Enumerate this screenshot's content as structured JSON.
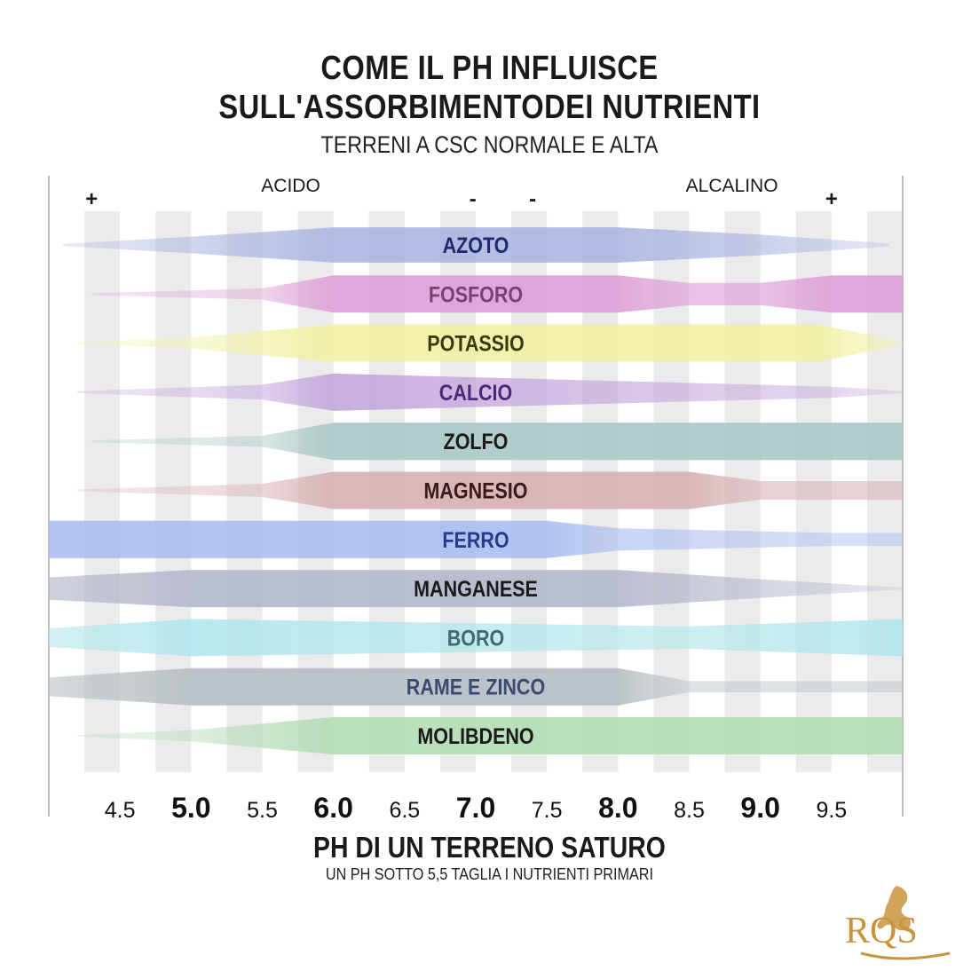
{
  "header": {
    "title_line1": "COME IL PH INFLUISCE",
    "title_line2": "SULL'ASSORBIMENTODEI NUTRIENTI",
    "subtitle": "TERRENI A CSC NORMALE E ALTA"
  },
  "chart_data": {
    "type": "area",
    "x_axis": {
      "range": [
        4.0,
        10.0
      ],
      "ticks": [
        {
          "value": 4.5,
          "label": "4.5",
          "bold": false
        },
        {
          "value": 5.0,
          "label": "5.0",
          "bold": true
        },
        {
          "value": 5.5,
          "label": "5.5",
          "bold": false
        },
        {
          "value": 6.0,
          "label": "6.0",
          "bold": true
        },
        {
          "value": 6.5,
          "label": "6.5",
          "bold": false
        },
        {
          "value": 7.0,
          "label": "7.0",
          "bold": true
        },
        {
          "value": 7.5,
          "label": "7.5",
          "bold": false
        },
        {
          "value": 8.0,
          "label": "8.0",
          "bold": true
        },
        {
          "value": 8.5,
          "label": "8.5",
          "bold": false
        },
        {
          "value": 9.0,
          "label": "9.0",
          "bold": true
        },
        {
          "value": 9.5,
          "label": "9.5",
          "bold": false
        }
      ],
      "xlabel": "PH DI UN TERRENO SATURO",
      "note": "UN PH SOTTO 5,5 TAGLIA I NUTRIENTI PRIMARI"
    },
    "annotations": [
      {
        "text": "ACIDO",
        "x": 5.7
      },
      {
        "text": "ALCALINO",
        "x": 8.8
      },
      {
        "text": "+",
        "x": 4.3
      },
      {
        "text": "-",
        "x": 6.98
      },
      {
        "text": "-",
        "x": 7.4
      },
      {
        "text": "+",
        "x": 9.5
      }
    ],
    "series": [
      {
        "name": "AZOTO",
        "color": "#a9b3e0",
        "label_color": "#1e2a6e",
        "profile": [
          [
            4.1,
            0.05
          ],
          [
            5.0,
            0.45
          ],
          [
            6.0,
            0.95
          ],
          [
            8.0,
            0.95
          ],
          [
            9.0,
            0.55
          ],
          [
            9.9,
            0.08
          ]
        ]
      },
      {
        "name": "FOSFORO",
        "color": "#dd9fd6",
        "label_color": "#7a3e78",
        "profile": [
          [
            4.3,
            0.05
          ],
          [
            5.5,
            0.3
          ],
          [
            6.0,
            1.0
          ],
          [
            8.0,
            1.0
          ],
          [
            8.5,
            0.6
          ],
          [
            9.0,
            0.6
          ],
          [
            9.5,
            1.0
          ],
          [
            10.0,
            1.0
          ]
        ]
      },
      {
        "name": "POTASSIO",
        "color": "#f1f1a3",
        "label_color": "#3a3a10",
        "profile": [
          [
            4.2,
            0.05
          ],
          [
            5.0,
            0.3
          ],
          [
            6.0,
            1.0
          ],
          [
            9.4,
            1.0
          ],
          [
            10.0,
            0.1
          ]
        ]
      },
      {
        "name": "CALCIO",
        "color": "#c3a4dc",
        "label_color": "#4a2a78",
        "profile": [
          [
            4.2,
            0.05
          ],
          [
            5.5,
            0.4
          ],
          [
            6.0,
            1.0
          ],
          [
            9.5,
            0.3
          ],
          [
            10.0,
            0.05
          ]
        ]
      },
      {
        "name": "ZOLFO",
        "color": "#a9c8c6",
        "label_color": "#1a1a1a",
        "profile": [
          [
            4.3,
            0.05
          ],
          [
            5.5,
            0.3
          ],
          [
            6.0,
            1.0
          ],
          [
            10.0,
            1.0
          ]
        ]
      },
      {
        "name": "MAGNESIO",
        "color": "#d6b0b3",
        "label_color": "#3a1a1a",
        "profile": [
          [
            4.2,
            0.05
          ],
          [
            5.5,
            0.35
          ],
          [
            6.0,
            1.0
          ],
          [
            8.5,
            1.0
          ],
          [
            9.0,
            0.5
          ],
          [
            10.0,
            0.5
          ]
        ]
      },
      {
        "name": "FERRO",
        "color": "#a9bdf0",
        "label_color": "#2a3a8a",
        "profile": [
          [
            4.0,
            1.0
          ],
          [
            7.5,
            1.0
          ],
          [
            8.0,
            0.6
          ],
          [
            9.5,
            0.35
          ],
          [
            10.0,
            0.35
          ]
        ]
      },
      {
        "name": "MANGANESE",
        "color": "#b3b8cb",
        "label_color": "#1a1a1a",
        "profile": [
          [
            4.0,
            0.6
          ],
          [
            5.0,
            1.0
          ],
          [
            8.0,
            1.0
          ],
          [
            9.0,
            0.5
          ],
          [
            10.0,
            0.05
          ]
        ]
      },
      {
        "name": "BORO",
        "color": "#b3e6ec",
        "label_color": "#3e6a70",
        "profile": [
          [
            4.0,
            0.5
          ],
          [
            5.0,
            1.0
          ],
          [
            8.5,
            0.6
          ],
          [
            10.0,
            1.0
          ]
        ]
      },
      {
        "name": "RAME E ZINCO",
        "color": "#b6bec3",
        "label_color": "#3a4a70",
        "profile": [
          [
            4.0,
            0.5
          ],
          [
            5.0,
            1.0
          ],
          [
            8.0,
            1.0
          ],
          [
            8.5,
            0.3
          ],
          [
            10.0,
            0.3
          ]
        ]
      },
      {
        "name": "MOLIBDENO",
        "color": "#b3dcb5",
        "label_color": "#1a1a1a",
        "profile": [
          [
            4.2,
            0.05
          ],
          [
            5.0,
            0.3
          ],
          [
            6.0,
            1.0
          ],
          [
            8.5,
            1.0
          ],
          [
            10.0,
            1.0
          ]
        ]
      }
    ]
  },
  "logo": {
    "text": "RQS"
  }
}
